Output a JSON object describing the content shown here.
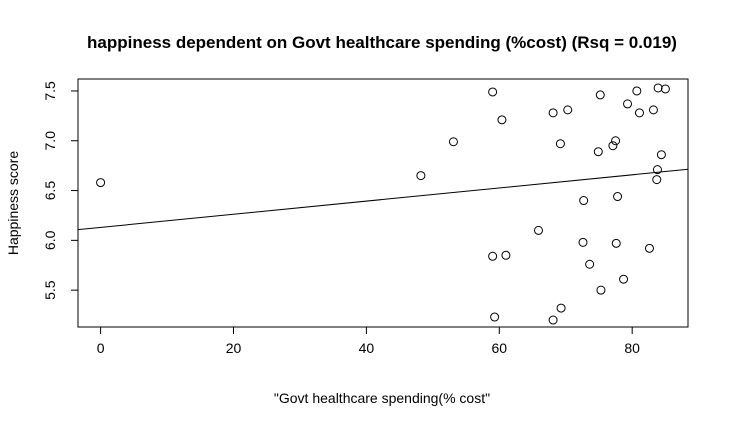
{
  "chart_data": {
    "type": "scatter",
    "title": "happiness dependent on Govt healthcare spending (%cost)  (Rsq = 0.019)",
    "xlabel": "\"Govt healthcare spending(% cost\"",
    "ylabel": "Happiness score",
    "xlim": [
      -3.4,
      88.4
    ],
    "ylim": [
      5.13,
      7.62
    ],
    "x_ticks": [
      0,
      20,
      40,
      60,
      80
    ],
    "x_tick_labels": [
      "0",
      "20",
      "40",
      "60",
      "80"
    ],
    "y_ticks": [
      5.5,
      6.0,
      6.5,
      7.0,
      7.5
    ],
    "y_tick_labels": [
      "5.5",
      "6.0",
      "6.5",
      "7.0",
      "7.5"
    ],
    "grid": false,
    "legend": "none",
    "points": [
      {
        "x": 0.0,
        "y": 6.58
      },
      {
        "x": 48.2,
        "y": 6.65
      },
      {
        "x": 53.1,
        "y": 6.99
      },
      {
        "x": 59.0,
        "y": 7.49
      },
      {
        "x": 60.4,
        "y": 7.21
      },
      {
        "x": 70.3,
        "y": 7.31
      },
      {
        "x": 68.1,
        "y": 7.28
      },
      {
        "x": 75.2,
        "y": 7.46
      },
      {
        "x": 69.2,
        "y": 6.97
      },
      {
        "x": 74.9,
        "y": 6.89
      },
      {
        "x": 77.5,
        "y": 7.0
      },
      {
        "x": 77.1,
        "y": 6.95
      },
      {
        "x": 79.3,
        "y": 7.37
      },
      {
        "x": 80.7,
        "y": 7.5
      },
      {
        "x": 81.1,
        "y": 7.28
      },
      {
        "x": 83.2,
        "y": 7.31
      },
      {
        "x": 83.9,
        "y": 7.53
      },
      {
        "x": 85.0,
        "y": 7.52
      },
      {
        "x": 84.4,
        "y": 6.86
      },
      {
        "x": 83.8,
        "y": 6.71
      },
      {
        "x": 83.7,
        "y": 6.61
      },
      {
        "x": 77.8,
        "y": 6.44
      },
      {
        "x": 72.7,
        "y": 6.4
      },
      {
        "x": 65.9,
        "y": 6.1
      },
      {
        "x": 72.6,
        "y": 5.98
      },
      {
        "x": 77.6,
        "y": 5.97
      },
      {
        "x": 82.6,
        "y": 5.92
      },
      {
        "x": 59.0,
        "y": 5.84
      },
      {
        "x": 61.0,
        "y": 5.85
      },
      {
        "x": 73.6,
        "y": 5.76
      },
      {
        "x": 78.7,
        "y": 5.61
      },
      {
        "x": 75.3,
        "y": 5.5
      },
      {
        "x": 69.3,
        "y": 5.32
      },
      {
        "x": 59.3,
        "y": 5.23
      },
      {
        "x": 68.1,
        "y": 5.2
      }
    ],
    "fit_line": {
      "intercept": 6.13,
      "slope": 0.0066
    }
  }
}
